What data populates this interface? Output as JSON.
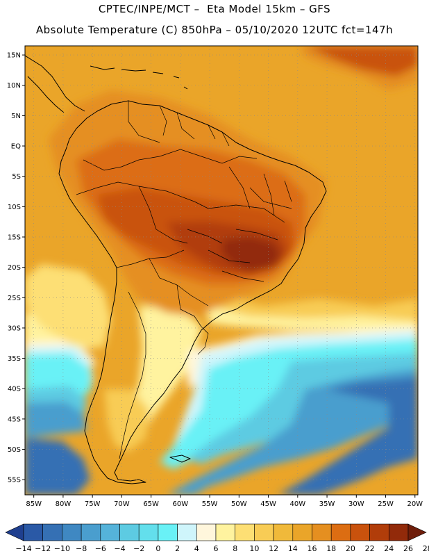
{
  "title": {
    "line1": "CPTEC/INPE/MCT –  Eta Model 15km – GFS",
    "line2": "Absolute Temperature (C) 850hPa – 05/10/2020 12UTC fct=147h"
  },
  "lat_axis": {
    "range_deg": [
      -57.5,
      16.5
    ],
    "ticks": [
      {
        "value": 15,
        "label": "15N"
      },
      {
        "value": 10,
        "label": "10N"
      },
      {
        "value": 5,
        "label": "5N"
      },
      {
        "value": 0,
        "label": "EQ"
      },
      {
        "value": -5,
        "label": "5S"
      },
      {
        "value": -10,
        "label": "10S"
      },
      {
        "value": -15,
        "label": "15S"
      },
      {
        "value": -20,
        "label": "20S"
      },
      {
        "value": -25,
        "label": "25S"
      },
      {
        "value": -30,
        "label": "30S"
      },
      {
        "value": -35,
        "label": "35S"
      },
      {
        "value": -40,
        "label": "40S"
      },
      {
        "value": -45,
        "label": "45S"
      },
      {
        "value": -50,
        "label": "50S"
      },
      {
        "value": -55,
        "label": "55S"
      }
    ]
  },
  "lon_axis": {
    "range_deg": [
      -86.5,
      -19.5
    ],
    "ticks": [
      {
        "value": -85,
        "label": "85W"
      },
      {
        "value": -80,
        "label": "80W"
      },
      {
        "value": -75,
        "label": "75W"
      },
      {
        "value": -70,
        "label": "70W"
      },
      {
        "value": -65,
        "label": "65W"
      },
      {
        "value": -60,
        "label": "60W"
      },
      {
        "value": -55,
        "label": "55W"
      },
      {
        "value": -50,
        "label": "50W"
      },
      {
        "value": -45,
        "label": "45W"
      },
      {
        "value": -40,
        "label": "40W"
      },
      {
        "value": -35,
        "label": "35W"
      },
      {
        "value": -30,
        "label": "30W"
      },
      {
        "value": -25,
        "label": "25W"
      },
      {
        "value": -20,
        "label": "20W"
      }
    ]
  },
  "colorbar": {
    "labels": [
      "-14",
      "-12",
      "-10",
      "-8",
      "-6",
      "-4",
      "-2",
      "0",
      "2",
      "4",
      "6",
      "8",
      "10",
      "12",
      "14",
      "16",
      "18",
      "20",
      "22",
      "24",
      "26",
      "28"
    ],
    "colors": [
      "#1f3f8f",
      "#2a59a6",
      "#3570b4",
      "#3f88c2",
      "#4a9ece",
      "#55b3da",
      "#5dcbe2",
      "#63dfec",
      "#69f1f6",
      "#cff5fb",
      "#fff6dc",
      "#fff39f",
      "#fddf74",
      "#f8cc55",
      "#f0b93a",
      "#eaa529",
      "#e58f20",
      "#dc6d12",
      "#c9520d",
      "#b13d0a",
      "#922a0a",
      "#6e1d0a"
    ]
  },
  "field": {
    "base_color": "#eaa529",
    "regions": [
      {
        "name": "north-atlantic-warm",
        "color": "#e58f20"
      },
      {
        "name": "south-atlantic-cool",
        "color": "#f8cc55"
      },
      {
        "name": "south-pale",
        "color": "#fff39f"
      },
      {
        "name": "cold-cream",
        "color": "#fff6dc"
      },
      {
        "name": "cold-light",
        "color": "#cff5fb"
      },
      {
        "name": "cold-cyan",
        "color": "#69f1f6"
      },
      {
        "name": "cold-cyan2",
        "color": "#5dcbe2"
      },
      {
        "name": "cold-blue",
        "color": "#4a9ece"
      },
      {
        "name": "cold-blue2",
        "color": "#3570b4"
      },
      {
        "name": "land-warm",
        "color": "#e58f20"
      },
      {
        "name": "land-hot",
        "color": "#dc6d12"
      },
      {
        "name": "land-hotter",
        "color": "#c9520d"
      },
      {
        "name": "land-hottest",
        "color": "#b13d0a"
      },
      {
        "name": "land-peak",
        "color": "#922a0a"
      },
      {
        "name": "andes-cool",
        "color": "#fddf74"
      },
      {
        "name": "patagonia-cool",
        "color": "#f8cc55"
      },
      {
        "name": "caribbean-hot",
        "color": "#c9520d"
      }
    ]
  }
}
